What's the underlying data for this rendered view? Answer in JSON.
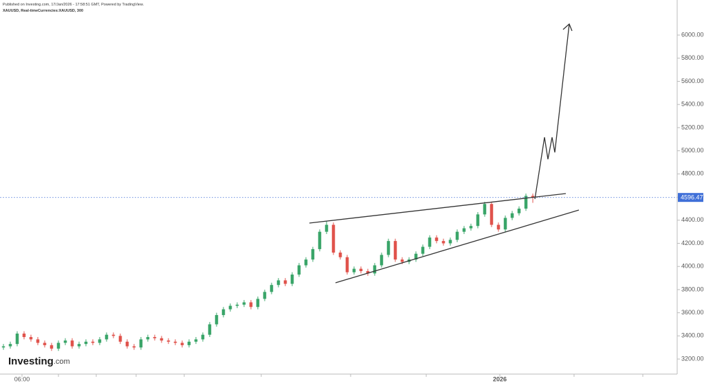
{
  "chart_data": {
    "type": "candlestick",
    "title": "Published on Investing.com, 17/Jan/2026 - 17:58:51 GMT, Powered by TradingView.",
    "subtitle": "XAUUSD, Real-timeCurrencies:XAUUSD, 300",
    "logo": [
      "Investing",
      ".com"
    ],
    "up_color": "#3aa569",
    "down_color": "#e0534c",
    "price_line_color": "#3f6fd8",
    "last_price": 4596.47,
    "open": [
      3300,
      3310,
      3330,
      3420,
      3390,
      3370,
      3340,
      3320,
      3290,
      3340,
      3360,
      3310,
      3330,
      3350,
      3340,
      3370,
      3410,
      3400,
      3350,
      3310,
      3300,
      3370,
      3390,
      3380,
      3360,
      3350,
      3340,
      3320,
      3350,
      3370,
      3410,
      3500,
      3580,
      3630,
      3660,
      3670,
      3690,
      3650,
      3720,
      3780,
      3840,
      3880,
      3850,
      3930,
      4010,
      4060,
      4150,
      4300,
      4360,
      4120,
      4080,
      3950,
      3980,
      3960,
      3940,
      4010,
      4100,
      4220,
      4060,
      4040,
      4060,
      4110,
      4170,
      4250,
      4220,
      4200,
      4230,
      4300,
      4330,
      4350,
      4450,
      4540,
      4360,
      4320,
      4420,
      4460,
      4500,
      4610
    ],
    "high": [
      3330,
      3350,
      3440,
      3440,
      3410,
      3390,
      3360,
      3340,
      3360,
      3380,
      3380,
      3350,
      3370,
      3370,
      3390,
      3430,
      3430,
      3420,
      3370,
      3330,
      3390,
      3410,
      3410,
      3400,
      3380,
      3370,
      3360,
      3370,
      3390,
      3430,
      3520,
      3600,
      3650,
      3680,
      3690,
      3710,
      3710,
      3740,
      3800,
      3860,
      3900,
      3900,
      3950,
      4030,
      4080,
      4170,
      4320,
      4390,
      4380,
      4140,
      4100,
      4000,
      4000,
      3980,
      4030,
      4120,
      4240,
      4240,
      4080,
      4080,
      4130,
      4190,
      4270,
      4270,
      4240,
      4250,
      4320,
      4350,
      4370,
      4470,
      4560,
      4560,
      4380,
      4440,
      4480,
      4520,
      4630,
      4630
    ],
    "low": [
      3280,
      3290,
      3310,
      3370,
      3350,
      3320,
      3300,
      3270,
      3270,
      3320,
      3290,
      3290,
      3310,
      3320,
      3320,
      3350,
      3380,
      3330,
      3290,
      3280,
      3280,
      3350,
      3360,
      3340,
      3330,
      3320,
      3300,
      3300,
      3330,
      3350,
      3390,
      3480,
      3560,
      3610,
      3640,
      3650,
      3630,
      3630,
      3700,
      3760,
      3820,
      3830,
      3830,
      3910,
      3990,
      4040,
      4130,
      4280,
      4100,
      4060,
      3930,
      3930,
      3940,
      3920,
      3920,
      3990,
      4080,
      4040,
      4020,
      4020,
      4040,
      4090,
      4150,
      4200,
      4180,
      4180,
      4210,
      4280,
      4310,
      4330,
      4430,
      4340,
      4300,
      4300,
      4400,
      4440,
      4480,
      4550
    ],
    "close": [
      3310,
      3330,
      3420,
      3390,
      3370,
      3340,
      3320,
      3290,
      3340,
      3360,
      3310,
      3330,
      3350,
      3340,
      3370,
      3410,
      3400,
      3350,
      3310,
      3300,
      3370,
      3390,
      3380,
      3360,
      3350,
      3340,
      3320,
      3350,
      3370,
      3410,
      3500,
      3580,
      3630,
      3660,
      3670,
      3690,
      3650,
      3720,
      3780,
      3840,
      3880,
      3850,
      3930,
      4010,
      4060,
      4150,
      4300,
      4360,
      4120,
      4080,
      3950,
      3980,
      3960,
      3940,
      4010,
      4100,
      4220,
      4060,
      4040,
      4060,
      4110,
      4170,
      4250,
      4220,
      4200,
      4230,
      4300,
      4330,
      4350,
      4450,
      4540,
      4360,
      4320,
      4420,
      4460,
      4500,
      4610,
      4596.47
    ],
    "xlim": [
      -0.5,
      98
    ],
    "xticks": [
      {
        "value": 2.7,
        "label": "06:00"
      },
      {
        "value": 72.2,
        "label": "2026"
      }
    ],
    "ylim": [
      3070,
      6303
    ],
    "yticks": [
      {
        "value": 3200,
        "label": "3200.00"
      },
      {
        "value": 3400,
        "label": "3400.00"
      },
      {
        "value": 3600,
        "label": "3600.00"
      },
      {
        "value": 3800,
        "label": "3800.00"
      },
      {
        "value": 4000,
        "label": "4000.00"
      },
      {
        "value": 4200,
        "label": "4200.00"
      },
      {
        "value": 4400,
        "label": "4400.00"
      },
      {
        "value": 4600,
        "label": "4600.00"
      },
      {
        "value": 4800,
        "label": "4800.00"
      },
      {
        "value": 5000,
        "label": "5000.00"
      },
      {
        "value": 5200,
        "label": "5200.00"
      },
      {
        "value": 5400,
        "label": "5400.00"
      },
      {
        "value": 5600,
        "label": "5600.00"
      },
      {
        "value": 5800,
        "label": "5800.00"
      },
      {
        "value": 6000,
        "label": "6000.00"
      }
    ]
  }
}
